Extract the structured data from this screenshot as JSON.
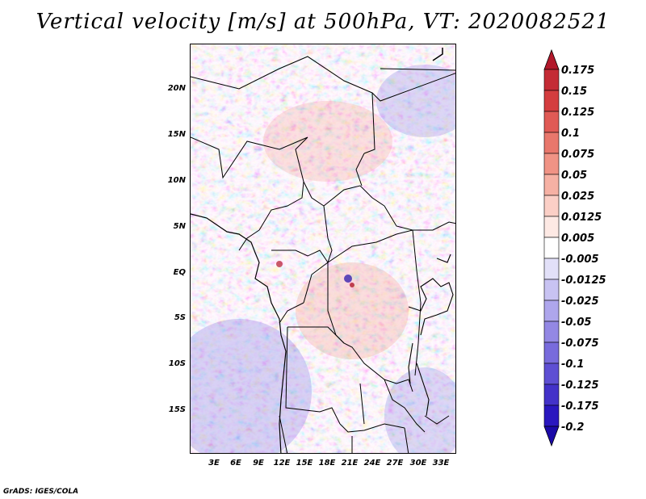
{
  "title": "Vertical velocity [m/s] at 500hPa, VT: 2020082521",
  "footer": "GrADS: IGES/COLA",
  "lat_labels": [
    "20N",
    "15N",
    "10N",
    "5N",
    "EQ",
    "5S",
    "10S",
    "15S"
  ],
  "lon_labels": [
    "3E",
    "6E",
    "9E",
    "12E",
    "15E",
    "18E",
    "21E",
    "24E",
    "27E",
    "30E",
    "33E"
  ],
  "colorbar": {
    "labels": [
      "0.175",
      "0.15",
      "0.125",
      "0.1",
      "0.075",
      "0.05",
      "0.025",
      "0.0125",
      "0.005",
      "-0.005",
      "-0.0125",
      "-0.025",
      "-0.05",
      "-0.075",
      "-0.1",
      "-0.125",
      "-0.175",
      "-0.2"
    ],
    "colors": [
      "#b2182b",
      "#c42b35",
      "#d43d3f",
      "#e05a55",
      "#e8776c",
      "#f09385",
      "#f6b1a4",
      "#fbcfc6",
      "#fde9e4",
      "#ffffff",
      "#e2e0f8",
      "#c8c3f2",
      "#aea6ec",
      "#9388e4",
      "#786bdc",
      "#5e4fd3",
      "#4332c9",
      "#2a17bf",
      "#1b0aa8"
    ]
  },
  "colors": {
    "positive": "#e06060",
    "negative": "#6a6ae0",
    "border": "#000000"
  }
}
